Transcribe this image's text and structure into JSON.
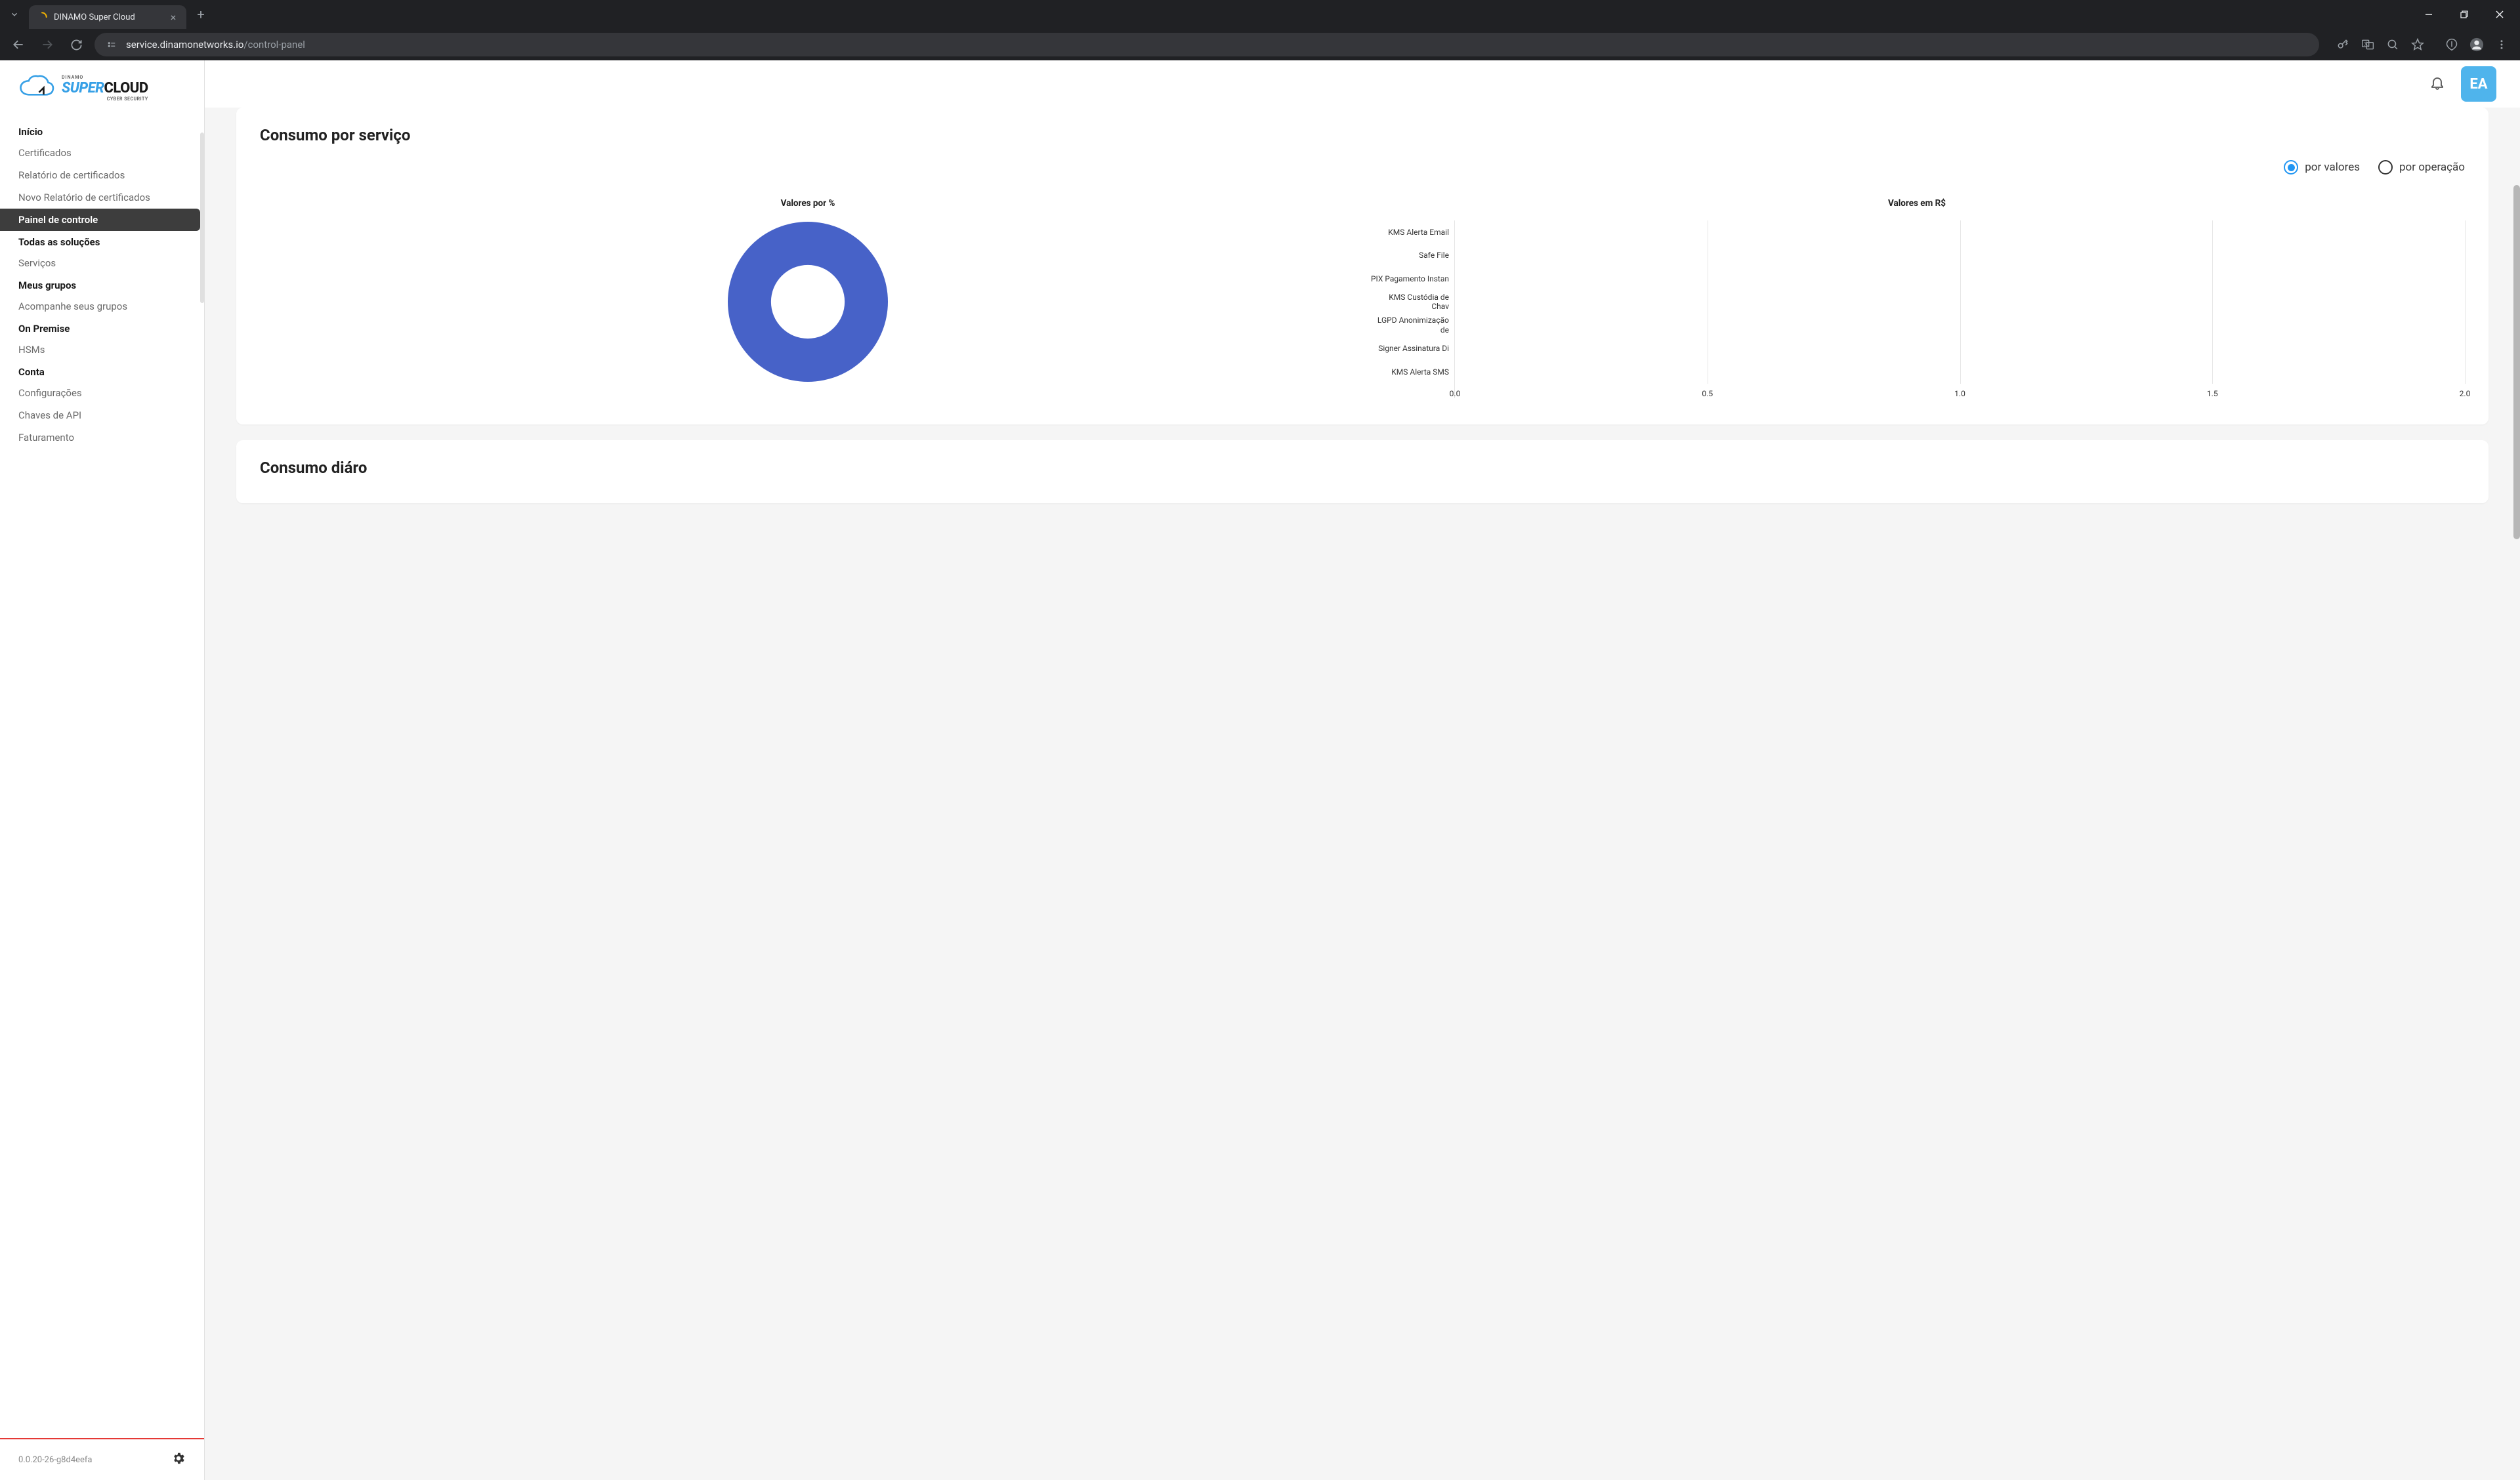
{
  "browser": {
    "tab_title": "DINAMO Super Cloud",
    "url_host": "service.dinamonetworks.io",
    "url_path": "/control-panel"
  },
  "branding": {
    "top_label": "DINAMO",
    "super": "SUPER",
    "cloud": "CLOUD",
    "subtitle": "CYBER SECURITY",
    "cloud_stroke": "#37a0e6",
    "super_color": "#37a0e6"
  },
  "sidebar": {
    "sections": [
      {
        "title": "Início",
        "items": [
          {
            "label": "Certificados",
            "name": "certificados"
          },
          {
            "label": "Relatório de certificados",
            "name": "relatorio-certificados"
          },
          {
            "label": "Novo Relatório de certificados",
            "name": "novo-relatorio-certificados"
          },
          {
            "label": "Painel de controle",
            "name": "painel-de-controle",
            "active": true
          }
        ]
      },
      {
        "title": "Todas as soluções",
        "items": [
          {
            "label": "Serviços",
            "name": "servicos"
          }
        ]
      },
      {
        "title": "Meus grupos",
        "items": [
          {
            "label": "Acompanhe seus grupos",
            "name": "acompanhe-grupos"
          }
        ]
      },
      {
        "title": "On Premise",
        "items": [
          {
            "label": "HSMs",
            "name": "hsms"
          }
        ]
      },
      {
        "title": "Conta",
        "items": [
          {
            "label": "Configurações",
            "name": "configuracoes"
          },
          {
            "label": "Chaves de API",
            "name": "chaves-api"
          },
          {
            "label": "Faturamento",
            "name": "faturamento"
          }
        ]
      }
    ],
    "version": "0.0.20-26-g8d4eefa"
  },
  "topbar": {
    "avatar_initials": "EA",
    "avatar_bg": "#4fb4ec"
  },
  "card1": {
    "title": "Consumo por serviço",
    "toggle": {
      "opt1": "por valores",
      "opt2": "por operação",
      "selected": 0,
      "checked_color": "#2196f3"
    },
    "donut": {
      "title": "Valores por %",
      "color": "#4762c8",
      "inner_ratio": 0.46,
      "value_pct": 100
    },
    "hbar": {
      "title": "Valores em R$",
      "categories": [
        "KMS Alerta Email",
        "Safe File",
        "PIX Pagamento Instan",
        "KMS Custódia de Chav",
        "LGPD Anonimização de",
        "Signer Assinatura Di",
        "KMS Alerta SMS"
      ],
      "values": [
        0,
        0,
        0,
        0,
        0,
        0,
        0
      ],
      "xlim": [
        0,
        2.0
      ],
      "xtick_step": 0.5,
      "xticks": [
        "0.0",
        "0.5",
        "1.0",
        "1.5",
        "2.0"
      ],
      "grid_color": "#e6e6e6",
      "label_fontsize": 12
    }
  },
  "card2": {
    "title": "Consumo diáro"
  }
}
